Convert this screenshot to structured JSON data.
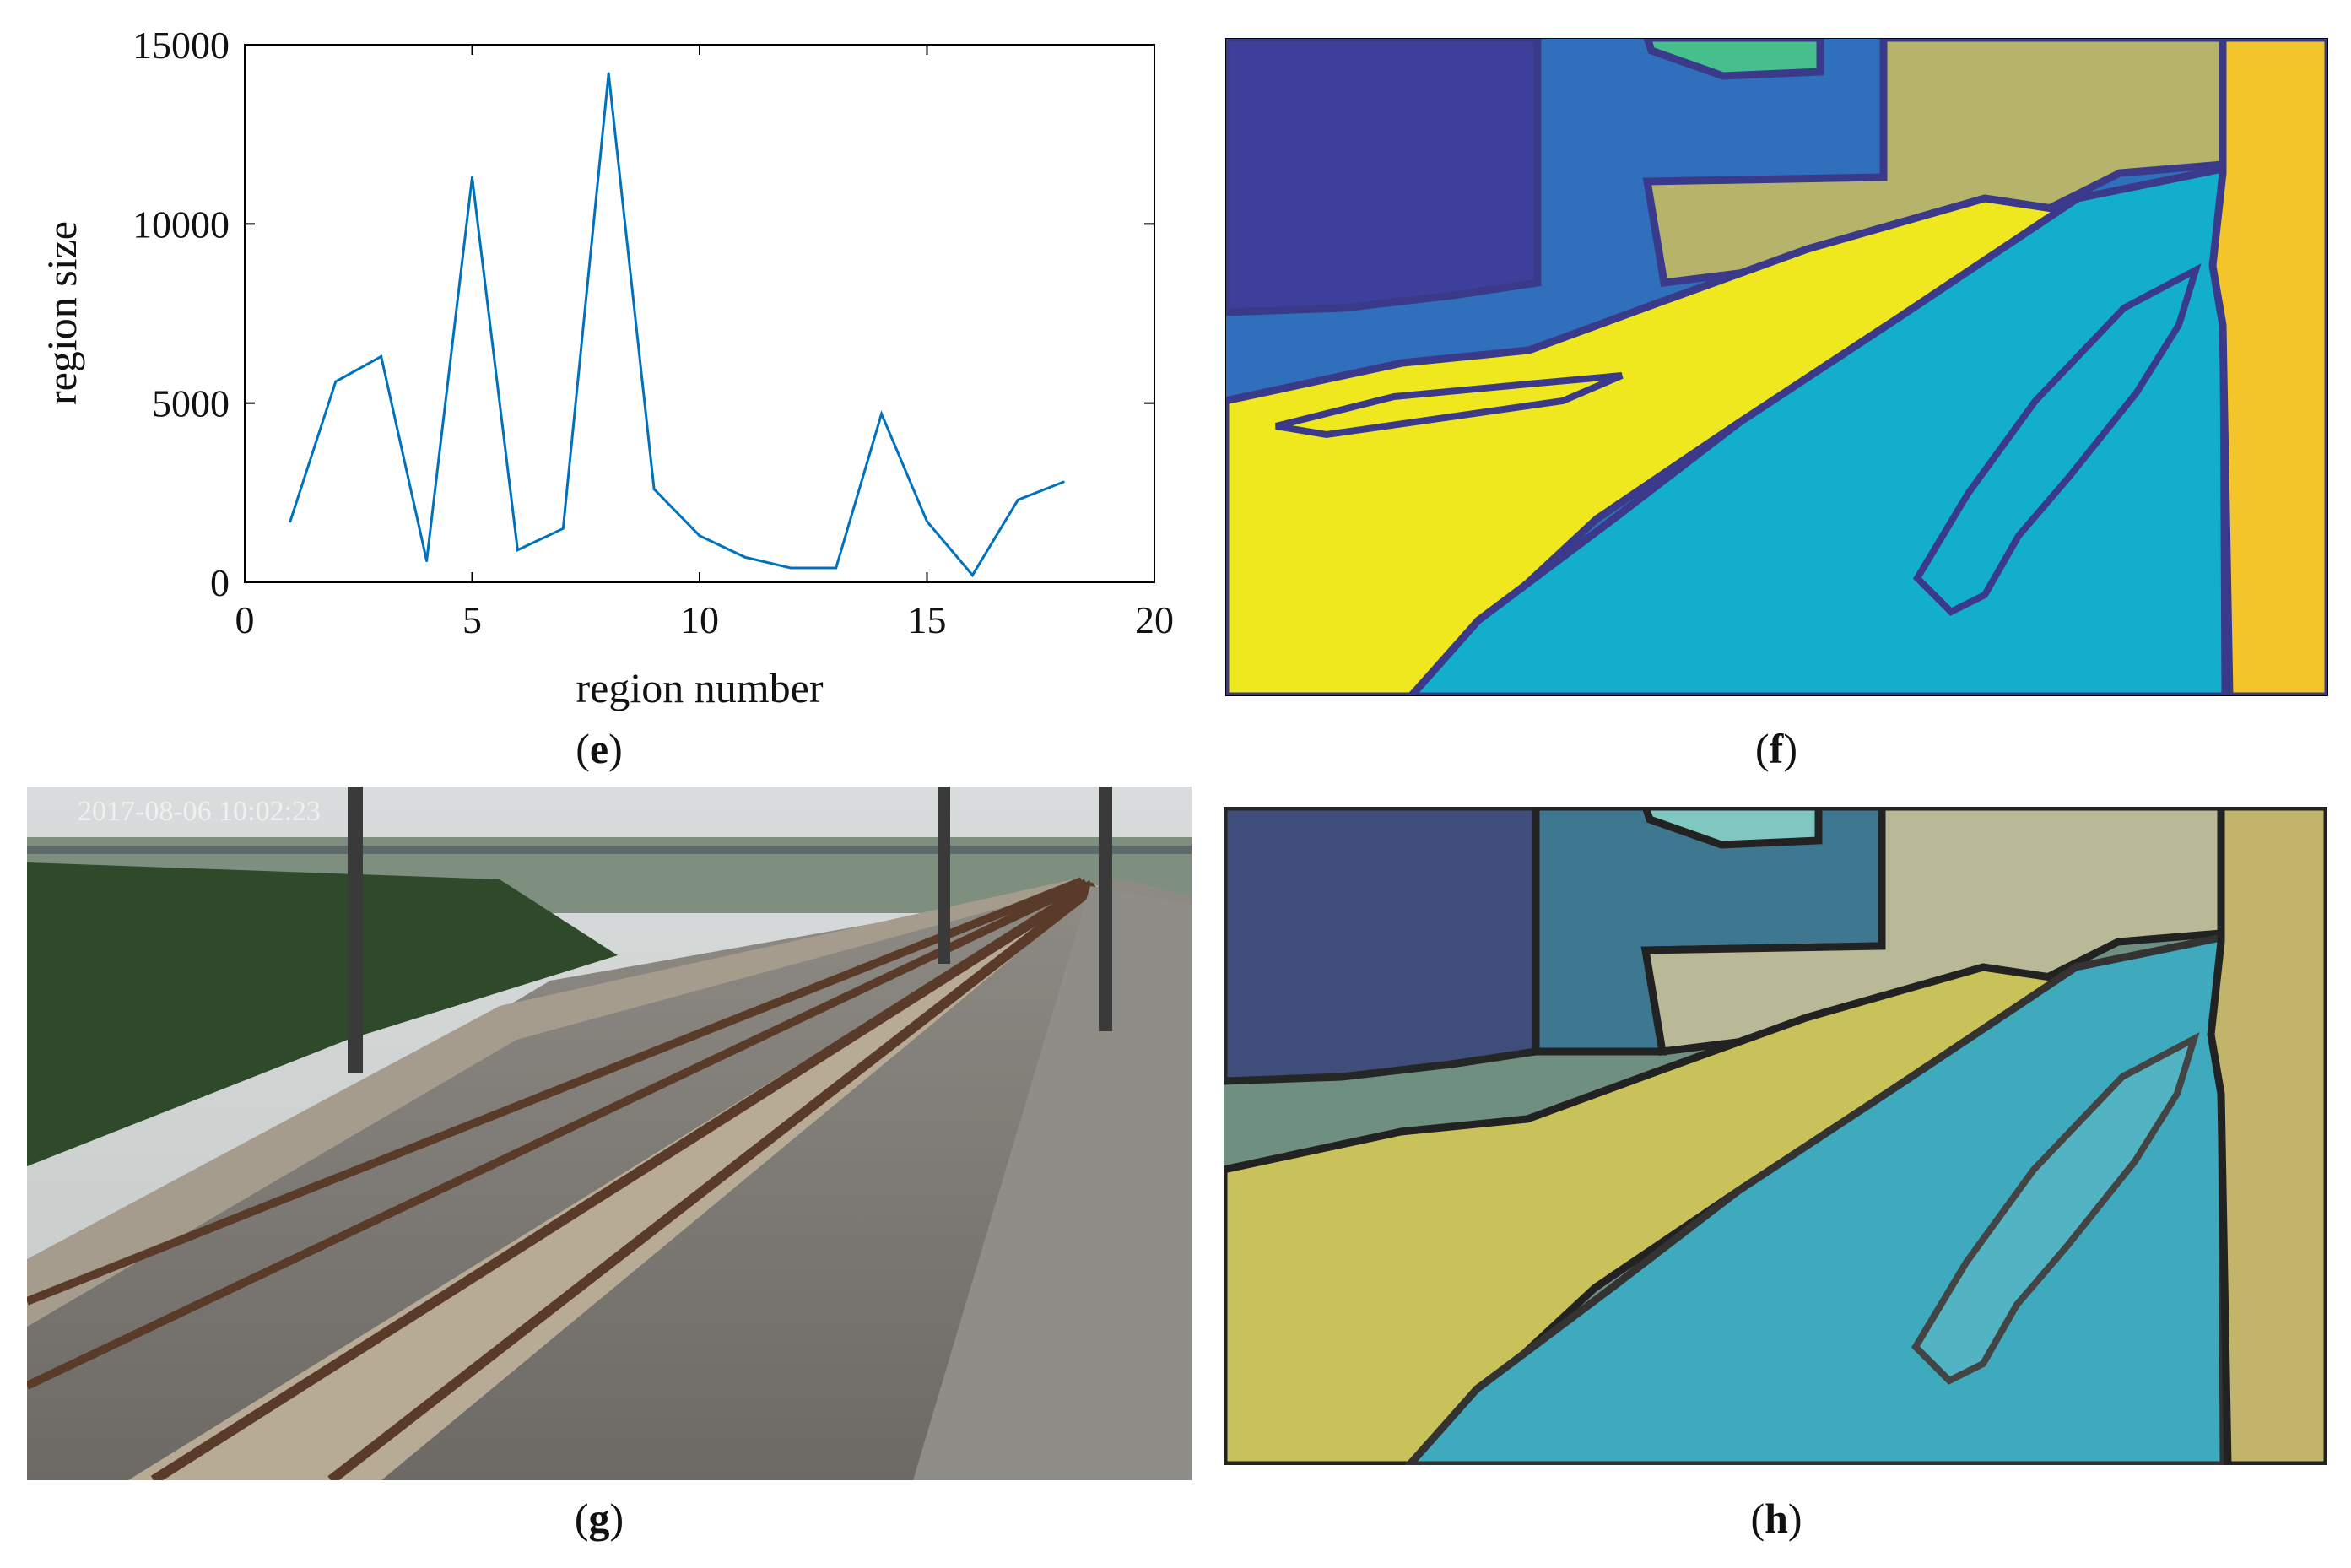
{
  "captions": {
    "e": "e",
    "f": "f",
    "g": "g",
    "h": "h"
  },
  "photo": {
    "timestamp": "2017-08-06 10:02:23"
  },
  "chart_data": {
    "type": "line",
    "xlabel": "region number",
    "ylabel": "region size",
    "xlim": [
      0,
      20
    ],
    "ylim": [
      0,
      15000
    ],
    "xticks": [
      0,
      5,
      10,
      15,
      20
    ],
    "yticks": [
      0,
      5000,
      10000,
      15000
    ],
    "grid": false,
    "series": [
      {
        "color": "#0072bd",
        "x": [
          1,
          2,
          3,
          4,
          5,
          6,
          7,
          8,
          9,
          10,
          11,
          12,
          13,
          14,
          15,
          16,
          17,
          18
        ],
        "y": [
          1700,
          5600,
          6300,
          600,
          11300,
          900,
          1500,
          14200,
          2600,
          1300,
          700,
          400,
          400,
          4700,
          1700,
          200,
          2300,
          2800
        ]
      }
    ]
  },
  "colors": {
    "region_dark_blue": "#3d3f9b",
    "region_blue": "#2f6fbb",
    "region_green": "#47bf8d",
    "region_olive": "#b5b46a",
    "region_yellow": "#f0e81f",
    "region_cyan": "#12aecb",
    "region_orange": "#f4c52a",
    "boundary": "#3b3a8a"
  }
}
